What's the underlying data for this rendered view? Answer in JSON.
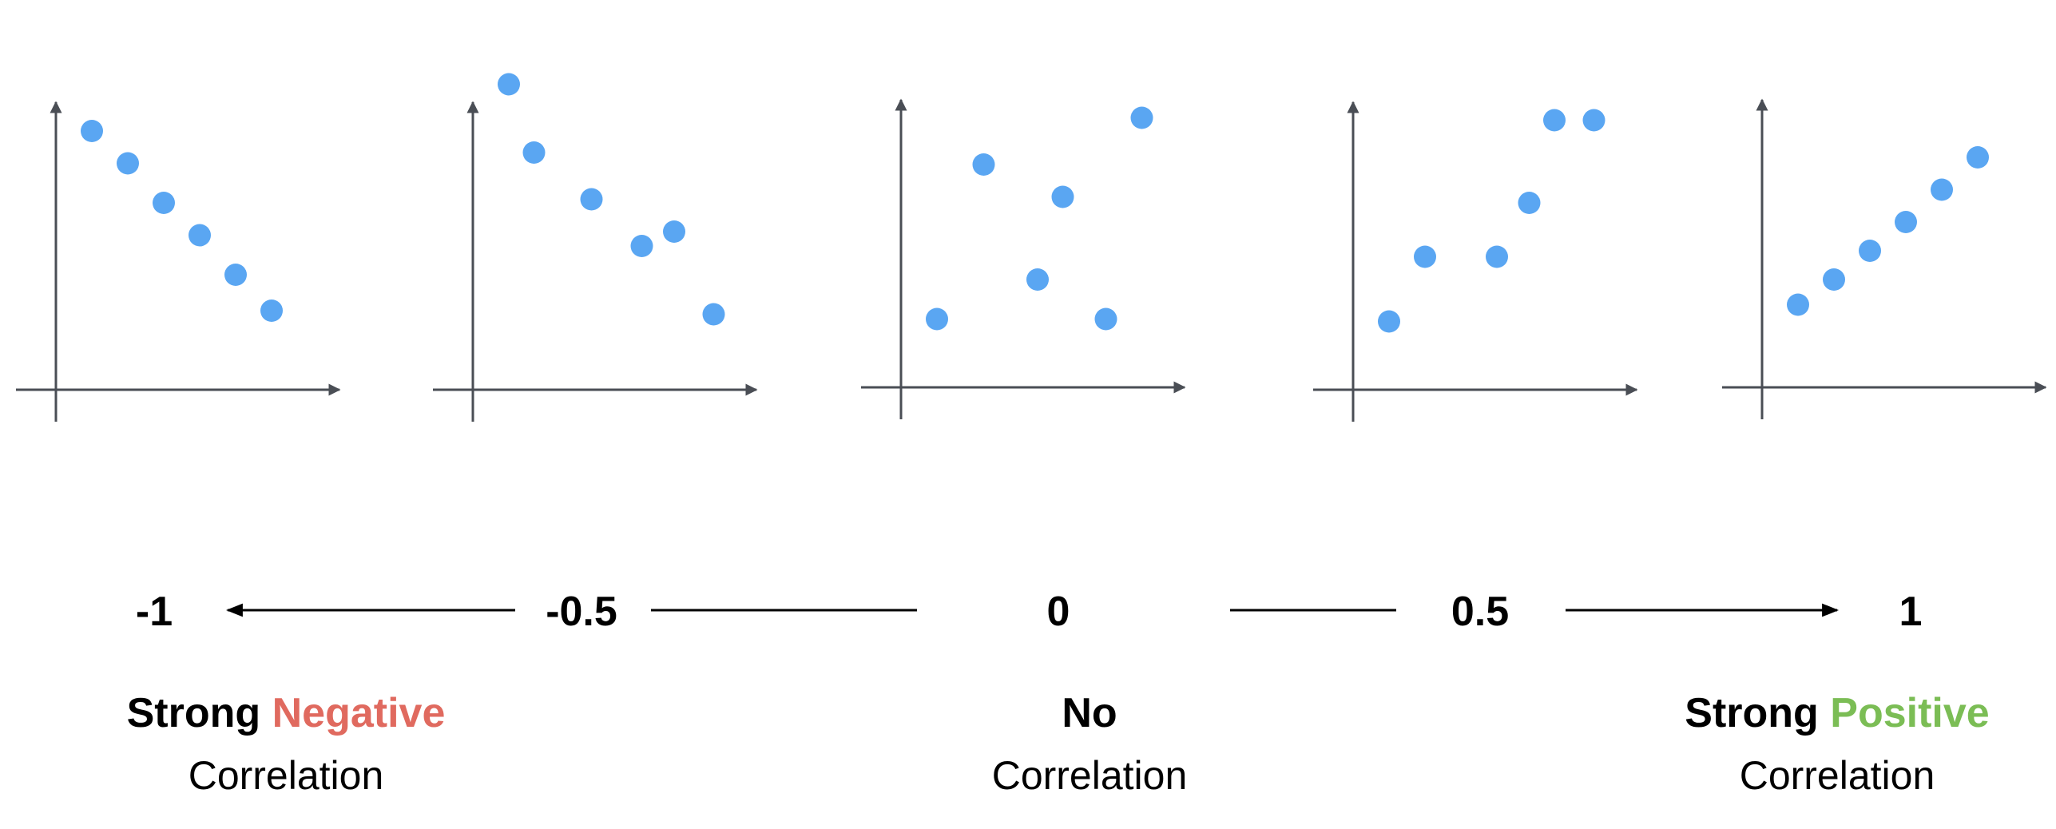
{
  "colors": {
    "axis": "#4a4e55",
    "point": "#5aa6f2",
    "negative": "#e06a5f",
    "positive": "#7bbd55",
    "text": "#000000"
  },
  "panels": [
    {
      "name": "strong-negative",
      "points": [
        [
          1,
          7.2
        ],
        [
          2,
          6.3
        ],
        [
          3,
          5.2
        ],
        [
          4,
          4.3
        ],
        [
          5,
          3.2
        ],
        [
          6,
          2.2
        ]
      ]
    },
    {
      "name": "moderate-negative",
      "points": [
        [
          1,
          8.5
        ],
        [
          1.7,
          6.6
        ],
        [
          3.3,
          5.3
        ],
        [
          4.7,
          4.0
        ],
        [
          5.6,
          4.4
        ],
        [
          6.7,
          2.1
        ]
      ]
    },
    {
      "name": "no-correlation",
      "points": [
        [
          1,
          1.9
        ],
        [
          2.3,
          6.2
        ],
        [
          3.8,
          3.0
        ],
        [
          4.5,
          5.3
        ],
        [
          5.7,
          1.9
        ],
        [
          6.7,
          7.5
        ]
      ]
    },
    {
      "name": "moderate-positive",
      "points": [
        [
          1,
          1.9
        ],
        [
          2,
          3.7
        ],
        [
          4,
          3.7
        ],
        [
          4.9,
          5.2
        ],
        [
          5.6,
          7.5
        ],
        [
          6.7,
          7.5
        ]
      ]
    },
    {
      "name": "strong-positive",
      "points": [
        [
          1,
          2.3
        ],
        [
          2,
          3.0
        ],
        [
          3,
          3.8
        ],
        [
          4,
          4.6
        ],
        [
          5,
          5.5
        ],
        [
          6,
          6.4
        ]
      ]
    }
  ],
  "scale": {
    "labels": [
      "-1",
      "-0.5",
      "0",
      "0.5",
      "1"
    ]
  },
  "categories": {
    "negative": {
      "bold": "Strong",
      "accent": "Negative",
      "sub": "Correlation"
    },
    "none": {
      "bold": "No",
      "sub": "Correlation"
    },
    "positive": {
      "bold": "Strong",
      "accent": "Positive",
      "sub": "Correlation"
    }
  }
}
